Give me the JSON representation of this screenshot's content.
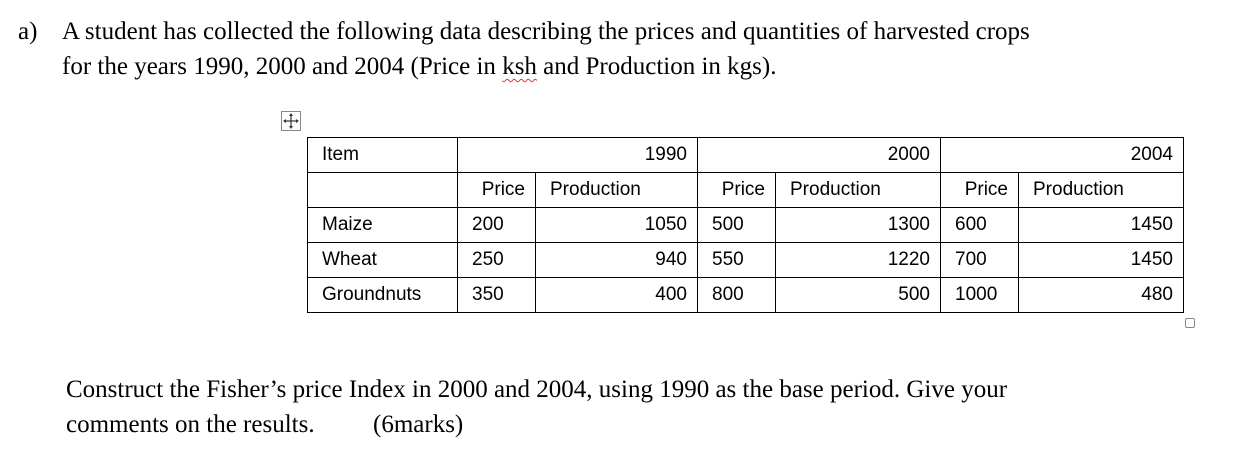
{
  "question": {
    "label": "a)",
    "line1": "A student has collected the following data describing the prices and quantities of harvested crops",
    "line2": [
      "for the years 1990, 2000 and 2004 (Price in ",
      "ksh",
      " and Production in kgs)."
    ]
  },
  "table": {
    "header": {
      "item": "Item",
      "years": [
        1990,
        2000,
        2004
      ]
    },
    "subheader": [
      "Price",
      "Production",
      "Price",
      "Production",
      "Price",
      "Production"
    ],
    "rows": [
      [
        "Maize",
        200,
        1050,
        500,
        1300,
        600,
        1450
      ],
      [
        "Wheat",
        250,
        940,
        550,
        1220,
        700,
        1450
      ],
      [
        "Groundnuts",
        350,
        400,
        800,
        500,
        1000,
        480
      ]
    ]
  },
  "instruction": {
    "line1": "Construct the Fisher’s price Index in 2000 and 2004, using 1990 as the base period. Give your",
    "line2": "comments on the results.",
    "marks": "(6marks)"
  }
}
